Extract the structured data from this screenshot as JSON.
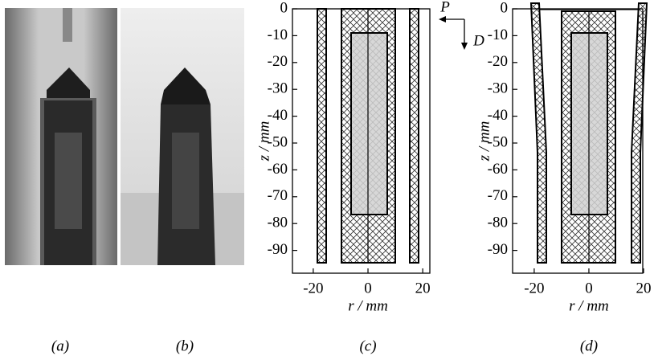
{
  "figure": {
    "panels": [
      {
        "caption": "(a)"
      },
      {
        "caption": "(b)"
      },
      {
        "caption": "(c)",
        "xlabel": "r / mm",
        "ylabel": "z / mm",
        "xlim": [
          -27.6,
          22.6
        ],
        "ylim": [
          -98.5,
          0
        ],
        "xticks": [
          -20,
          0,
          20
        ],
        "yticks": [
          0,
          -10,
          -20,
          -30,
          -40,
          -50,
          -60,
          -70,
          -80,
          -90
        ]
      },
      {
        "caption": "(d)",
        "xlabel": "r / mm",
        "ylabel": "z / mm",
        "xlim": [
          -27.9,
          19.7
        ],
        "ylim": [
          -98.5,
          0
        ],
        "xticks": [
          -20,
          0,
          20
        ],
        "yticks": [
          0,
          -10,
          -20,
          -30,
          -40,
          -50,
          -60,
          -70,
          -80,
          -90
        ]
      }
    ],
    "arrows": {
      "p": "P",
      "d": "D"
    }
  }
}
